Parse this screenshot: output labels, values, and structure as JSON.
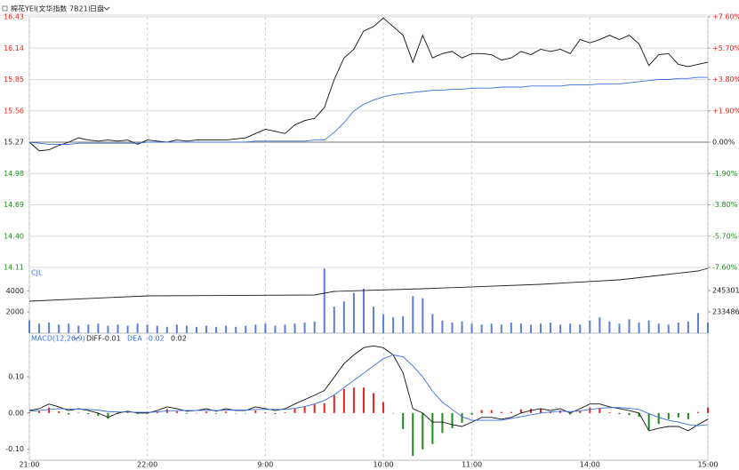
{
  "header": {
    "title": "棉花YEI(文华指数 7B21)",
    "mode": "日盘"
  },
  "chart_data": [
    {
      "type": "line",
      "xlim": [
        0,
        345
      ],
      "ylim": [
        14.11,
        16.43
      ],
      "yticks": [
        16.43,
        16.14,
        15.85,
        15.56,
        15.27,
        14.98,
        14.69,
        {
          "value": 14.4,
          "label": "14.40"
        },
        14.11
      ],
      "y2lim": [
        -7.6,
        7.6
      ],
      "y2ticks": [
        {
          "value": 7.6,
          "label": "+7.60%"
        },
        {
          "value": 5.7,
          "label": "+5.70%"
        },
        {
          "value": 3.8,
          "label": "+3.80%"
        },
        {
          "value": 1.9,
          "label": "+1.90%"
        },
        {
          "value": 0,
          "label": "0.00%"
        },
        {
          "value": -1.9,
          "label": "-1.90%"
        },
        {
          "value": -3.8,
          "label": "-3.80%"
        },
        {
          "value": -5.7,
          "label": "-5.70%"
        },
        {
          "value": -7.6,
          "label": "-7.60%"
        }
      ],
      "grid": true,
      "up_color": "#e8231e",
      "down_color": "#1c8a1c",
      "x": [
        0,
        5,
        10,
        15,
        20,
        25,
        30,
        35,
        40,
        45,
        50,
        55,
        60,
        65,
        70,
        75,
        80,
        85,
        90,
        95,
        100,
        105,
        110,
        115,
        120,
        125,
        130,
        135,
        140,
        145,
        150,
        155,
        160,
        165,
        170,
        175,
        180,
        185,
        190,
        195,
        200,
        205,
        210,
        215,
        220,
        225,
        230,
        235,
        240,
        245,
        250,
        255,
        260,
        265,
        270,
        275,
        280,
        285,
        290,
        295,
        300,
        305,
        310,
        315,
        320,
        325,
        330,
        335,
        340,
        345
      ],
      "series": [
        {
          "color": "#111111",
          "values": [
            15.27,
            15.19,
            15.2,
            15.24,
            15.27,
            15.31,
            15.29,
            15.28,
            15.29,
            15.28,
            15.29,
            15.25,
            15.29,
            15.28,
            15.27,
            15.29,
            15.28,
            15.29,
            15.29,
            15.29,
            15.29,
            15.3,
            15.31,
            15.35,
            15.39,
            15.37,
            15.35,
            15.43,
            15.47,
            15.49,
            15.59,
            15.85,
            16.05,
            16.13,
            16.3,
            16.34,
            16.42,
            16.34,
            16.26,
            16.01,
            16.26,
            16.05,
            16.09,
            16.11,
            16.05,
            16.09,
            16.09,
            16.08,
            16.03,
            16.05,
            16.11,
            16.08,
            16.13,
            16.11,
            16.13,
            16.09,
            16.22,
            16.19,
            16.22,
            16.26,
            16.22,
            16.26,
            16.18,
            15.98,
            16.08,
            16.09,
            15.99,
            15.97,
            15.99,
            16.01
          ]
        },
        {
          "color": "#3a6fd8",
          "values": [
            15.27,
            15.26,
            15.25,
            15.25,
            15.25,
            15.26,
            15.26,
            15.26,
            15.26,
            15.26,
            15.26,
            15.26,
            15.27,
            15.27,
            15.27,
            15.27,
            15.27,
            15.27,
            15.27,
            15.27,
            15.27,
            15.27,
            15.27,
            15.28,
            15.28,
            15.28,
            15.28,
            15.28,
            15.28,
            15.29,
            15.29,
            15.36,
            15.45,
            15.56,
            15.62,
            15.66,
            15.69,
            15.71,
            15.72,
            15.73,
            15.74,
            15.75,
            15.75,
            15.76,
            15.76,
            15.77,
            15.77,
            15.77,
            15.78,
            15.78,
            15.78,
            15.79,
            15.79,
            15.79,
            15.79,
            15.8,
            15.8,
            15.8,
            15.81,
            15.81,
            15.81,
            15.82,
            15.83,
            15.84,
            15.85,
            15.85,
            15.86,
            15.86,
            15.87,
            15.87
          ]
        }
      ]
    },
    {
      "type": "bar",
      "xlim": [
        0,
        345
      ],
      "ylim": [
        0,
        6200
      ],
      "yticks": [
        4000,
        2000
      ],
      "y2lim": [
        221671,
        258101
      ],
      "y2ticks": [
        245301,
        233486
      ],
      "x": [
        0,
        5,
        10,
        15,
        20,
        25,
        30,
        35,
        40,
        45,
        50,
        55,
        60,
        65,
        70,
        75,
        80,
        85,
        90,
        95,
        100,
        105,
        110,
        115,
        120,
        125,
        130,
        135,
        140,
        145,
        150,
        155,
        160,
        165,
        170,
        175,
        180,
        185,
        190,
        195,
        200,
        205,
        210,
        215,
        220,
        225,
        230,
        235,
        240,
        245,
        250,
        255,
        260,
        265,
        270,
        275,
        280,
        285,
        290,
        295,
        300,
        305,
        310,
        315,
        320,
        325,
        330,
        335,
        340,
        345
      ],
      "series": [
        {
          "name": "CJL",
          "color": "#5b7fd6",
          "values": [
            1200,
            900,
            1000,
            800,
            900,
            700,
            800,
            900,
            700,
            800,
            700,
            900,
            800,
            700,
            600,
            800,
            700,
            600,
            700,
            600,
            700,
            600,
            700,
            800,
            900,
            700,
            800,
            900,
            1000,
            1100,
            6100,
            2500,
            3000,
            3800,
            4200,
            2500,
            1800,
            1500,
            1600,
            3500,
            3300,
            1800,
            1200,
            1000,
            1100,
            900,
            800,
            900,
            800,
            1000,
            900,
            800,
            900,
            1000,
            800,
            900,
            800,
            1200,
            1500,
            1100,
            900,
            1300,
            1000,
            1200,
            900,
            800,
            1000,
            1100,
            1900,
            1000
          ]
        },
        {
          "type": "line",
          "axis": "y2",
          "color": "#222222",
          "x": [
            0,
            60,
            145,
            155,
            200,
            260,
            300,
            320,
            340,
            345
          ],
          "values": [
            239394,
            242347,
            242840,
            244809,
            246286,
            248747,
            251209,
            253670,
            256132,
            257609
          ]
        }
      ]
    },
    {
      "type": "line",
      "title": "MACD(12,26,9)",
      "xlim": [
        0,
        345
      ],
      "ylim": [
        -0.13,
        0.22
      ],
      "yticks": [
        {
          "value": 0.1,
          "label": "0.10"
        },
        {
          "value": 0,
          "label": "0.00"
        },
        {
          "value": -0.1,
          "label": "-0.10"
        }
      ],
      "xticks": [
        {
          "value": 0,
          "label": "21:00"
        },
        {
          "value": 60,
          "label": "22:00"
        },
        {
          "value": 120,
          "label": "9:00"
        },
        {
          "value": 180,
          "label": "10:00"
        },
        {
          "value": 225,
          "label": "11:00"
        },
        {
          "value": 285,
          "label": "14:00"
        },
        {
          "value": 345,
          "label": "15:00"
        }
      ],
      "readout": [
        -0.01,
        -0.02,
        0.02
      ],
      "x": [
        0,
        5,
        10,
        15,
        20,
        25,
        30,
        35,
        40,
        45,
        50,
        55,
        60,
        65,
        70,
        75,
        80,
        85,
        90,
        95,
        100,
        105,
        110,
        115,
        120,
        125,
        130,
        135,
        140,
        145,
        150,
        155,
        160,
        165,
        170,
        175,
        180,
        185,
        190,
        195,
        200,
        205,
        210,
        215,
        220,
        225,
        230,
        235,
        240,
        245,
        250,
        255,
        260,
        265,
        270,
        275,
        280,
        285,
        290,
        295,
        300,
        305,
        310,
        315,
        320,
        325,
        330,
        335,
        340,
        345
      ],
      "series": [
        {
          "type": "bar",
          "color": "#e8231e",
          "negative_color": "#1c8a1c",
          "values": [
            0.002,
            0.005,
            0.015,
            0.005,
            -0.004,
            0.001,
            -0.003,
            -0.008,
            -0.016,
            -0.003,
            0.002,
            -0.002,
            -0.002,
            0.004,
            0.011,
            0.005,
            -0.002,
            0,
            0.004,
            -0.002,
            0.004,
            -0.001,
            -0.001,
            0.007,
            0.002,
            -0.003,
            0.002,
            0.012,
            0.019,
            0.024,
            0.027,
            0.049,
            0.066,
            0.07,
            0.07,
            0.055,
            0.03,
            0,
            -0.044,
            -0.118,
            -0.1,
            -0.085,
            -0.055,
            -0.042,
            -0.027,
            -0.005,
            0.008,
            0.008,
            0.003,
            0.003,
            0.01,
            0.012,
            0.012,
            0.004,
            0.007,
            -0.004,
            0.006,
            0.015,
            0.012,
            0.002,
            -0.003,
            -0.006,
            -0.01,
            -0.047,
            -0.03,
            -0.017,
            -0.012,
            -0.017,
            0.003,
            0.015
          ]
        },
        {
          "name": "DIFF",
          "color": "#111111",
          "values": [
            0.007,
            0.012,
            0.025,
            0.017,
            0.007,
            0.012,
            0.007,
            0,
            -0.012,
            0,
            0.005,
            0,
            0,
            0.007,
            0.017,
            0.012,
            0.005,
            0.007,
            0.012,
            0.005,
            0.012,
            0.007,
            0.007,
            0.017,
            0.012,
            0.007,
            0.012,
            0.025,
            0.037,
            0.049,
            0.062,
            0.099,
            0.136,
            0.16,
            0.18,
            0.185,
            0.18,
            0.16,
            0.111,
            0.012,
            0,
            -0.025,
            -0.025,
            -0.032,
            -0.037,
            -0.025,
            -0.012,
            -0.012,
            -0.017,
            -0.012,
            0,
            0.007,
            0.012,
            0.007,
            0.012,
            0,
            0.012,
            0.025,
            0.025,
            0.017,
            0.012,
            0.007,
            0,
            -0.049,
            -0.042,
            -0.037,
            -0.037,
            -0.049,
            -0.032,
            -0.017
          ]
        },
        {
          "name": "DEA",
          "color": "#3a6fd8",
          "values": [
            0.005,
            0.007,
            0.01,
            0.012,
            0.011,
            0.011,
            0.01,
            0.008,
            0.004,
            0.003,
            0.003,
            0.002,
            0.002,
            0.003,
            0.006,
            0.007,
            0.007,
            0.007,
            0.008,
            0.007,
            0.008,
            0.008,
            0.008,
            0.01,
            0.01,
            0.01,
            0.01,
            0.013,
            0.018,
            0.025,
            0.035,
            0.05,
            0.07,
            0.09,
            0.11,
            0.13,
            0.15,
            0.16,
            0.155,
            0.13,
            0.1,
            0.06,
            0.03,
            0.01,
            -0.01,
            -0.02,
            -0.02,
            -0.02,
            -0.02,
            -0.015,
            -0.01,
            -0.005,
            0,
            0.003,
            0.005,
            0.004,
            0.006,
            0.01,
            0.013,
            0.015,
            0.015,
            0.013,
            0.01,
            -0.002,
            -0.012,
            -0.02,
            -0.025,
            -0.032,
            -0.035,
            -0.032
          ]
        }
      ]
    }
  ]
}
